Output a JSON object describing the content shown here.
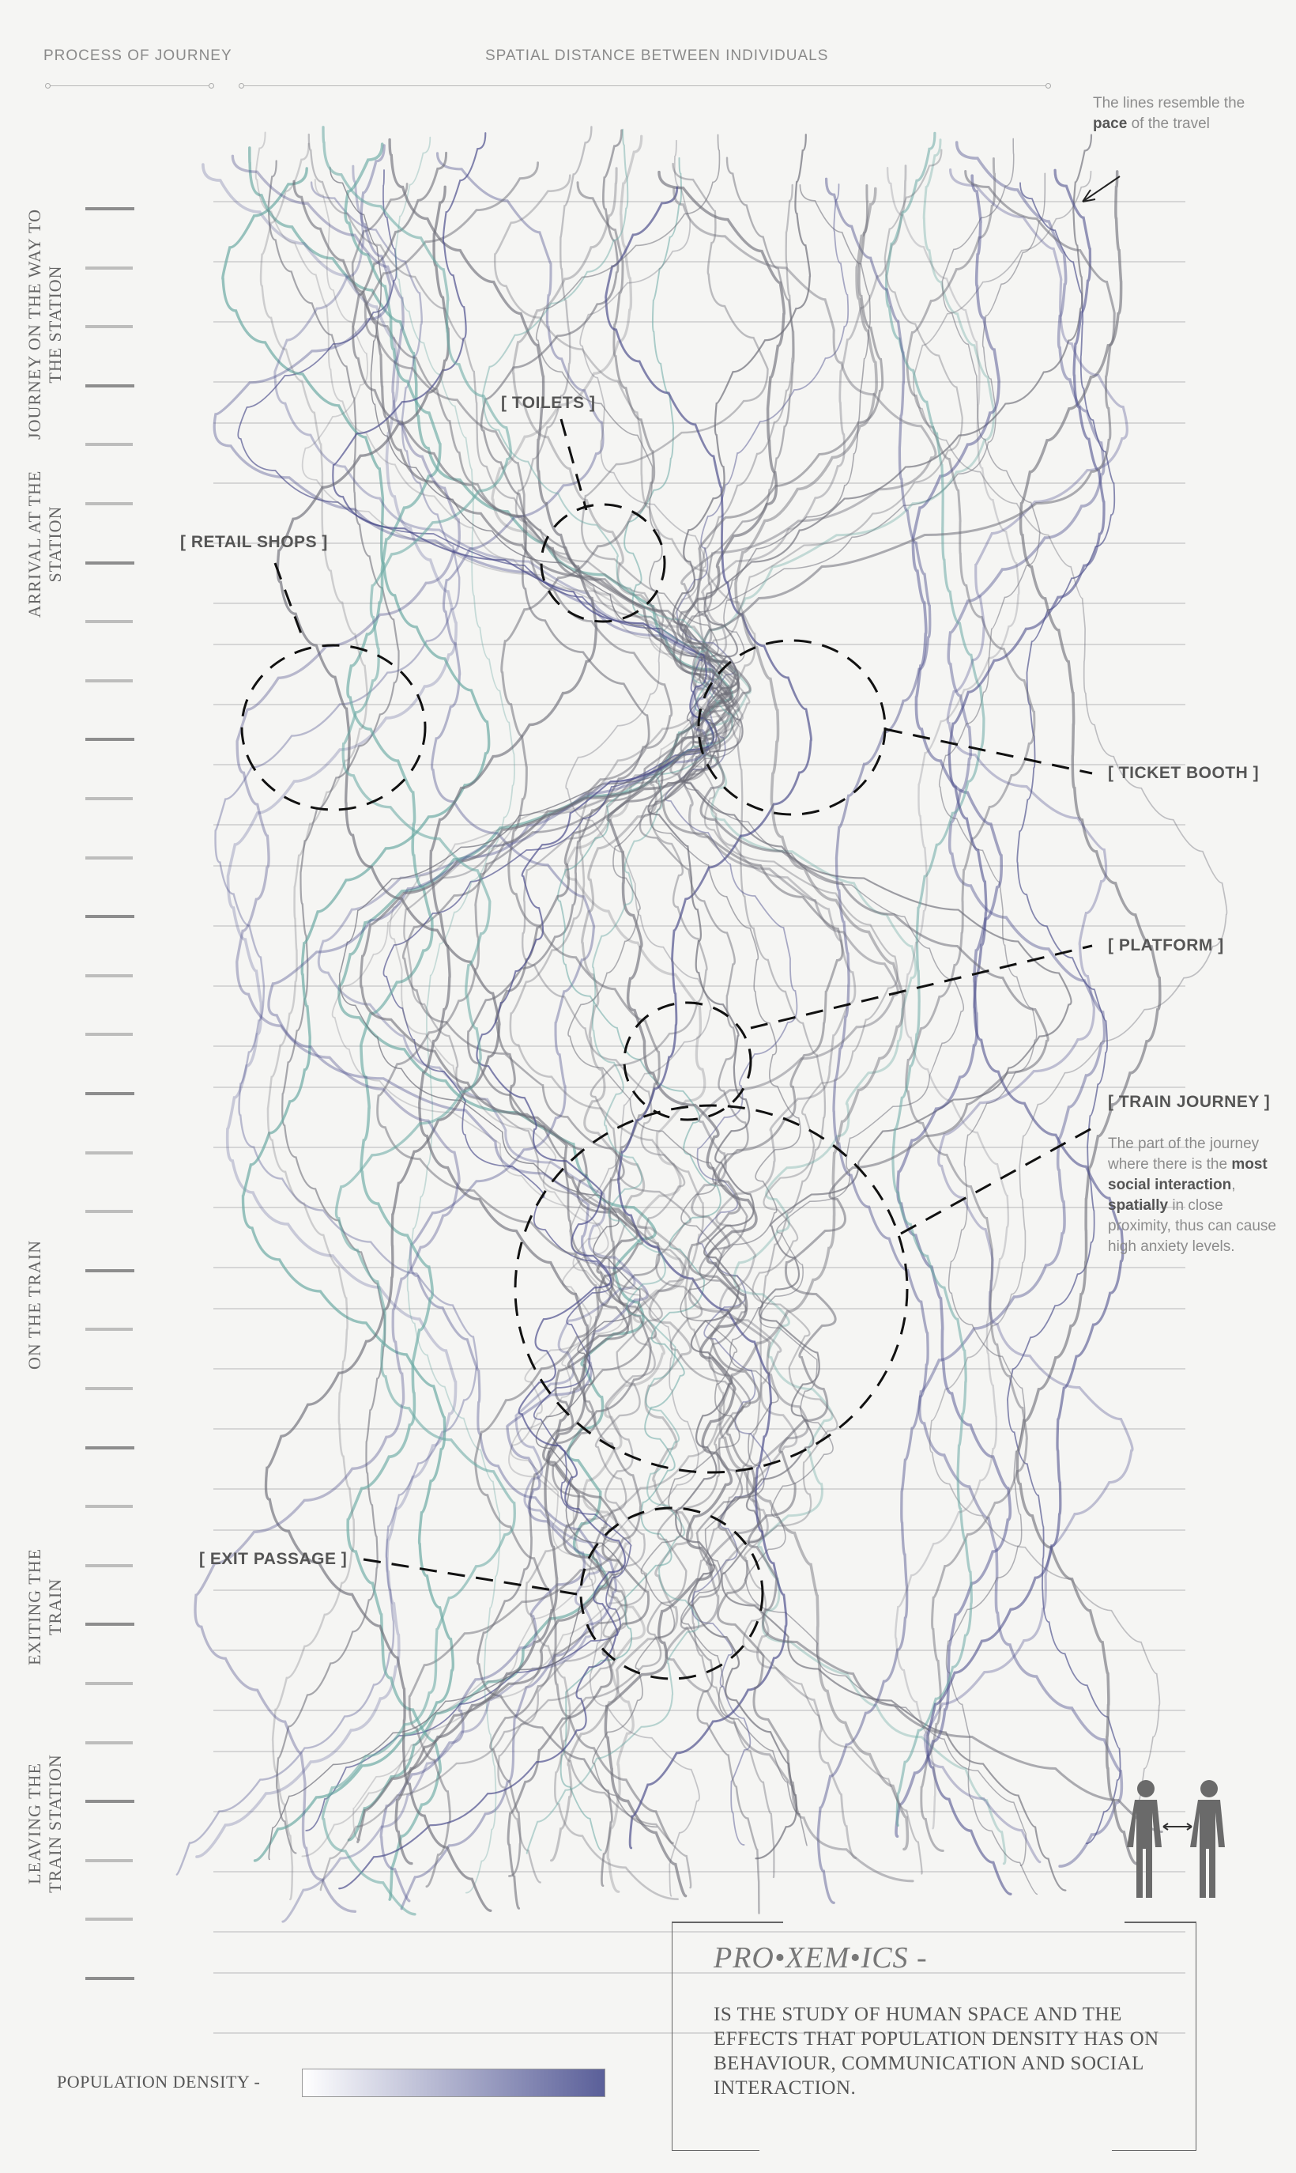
{
  "header": {
    "process": "PROCESS OF JOURNEY",
    "spatial": "SPATIAL DISTANCE BETWEEN INDIVIDUALS"
  },
  "stages": [
    "JOURNEY ON THE WAY TO THE STATION",
    "ARRIVAL AT THE STATION",
    "ON THE TRAIN",
    "EXITING THE TRAIN",
    "LEAVING THE TRAIN STATION"
  ],
  "pace_note": {
    "pre": "The lines resemble the ",
    "bold": "pace",
    "post": " of the travel"
  },
  "labels": {
    "toilets": "[ TOILETS ]",
    "retail": "[ RETAIL SHOPS ]",
    "ticket": "[ TICKET BOOTH ]",
    "platform": "[ PLATFORM ]",
    "train": "[ TRAIN JOURNEY ]",
    "exit": "[ EXIT PASSAGE ]"
  },
  "train_note": {
    "t1": "The part of the journey where there is the ",
    "b1": "most social interaction",
    "t2": ", ",
    "b2": "spatially",
    "t3": " in close proximity, thus can cause high anxiety levels."
  },
  "legend": {
    "label": "POPULATION DENSITY  -",
    "color_low": "#ffffff",
    "color_high": "#5a5f99"
  },
  "proxemics": {
    "title": "PRO•XEM•ICS  -",
    "description": "IS THE STUDY OF HUMAN SPACE AND THE EFFECTS THAT POPULATION DENSITY HAS ON BEHAVIOUR, COMMUNICATION AND SOCIAL INTERACTION."
  },
  "colors": {
    "line_grey": "#6e6e78",
    "line_purple": "#4d4f8c",
    "line_teal": "#6aa9a3"
  }
}
